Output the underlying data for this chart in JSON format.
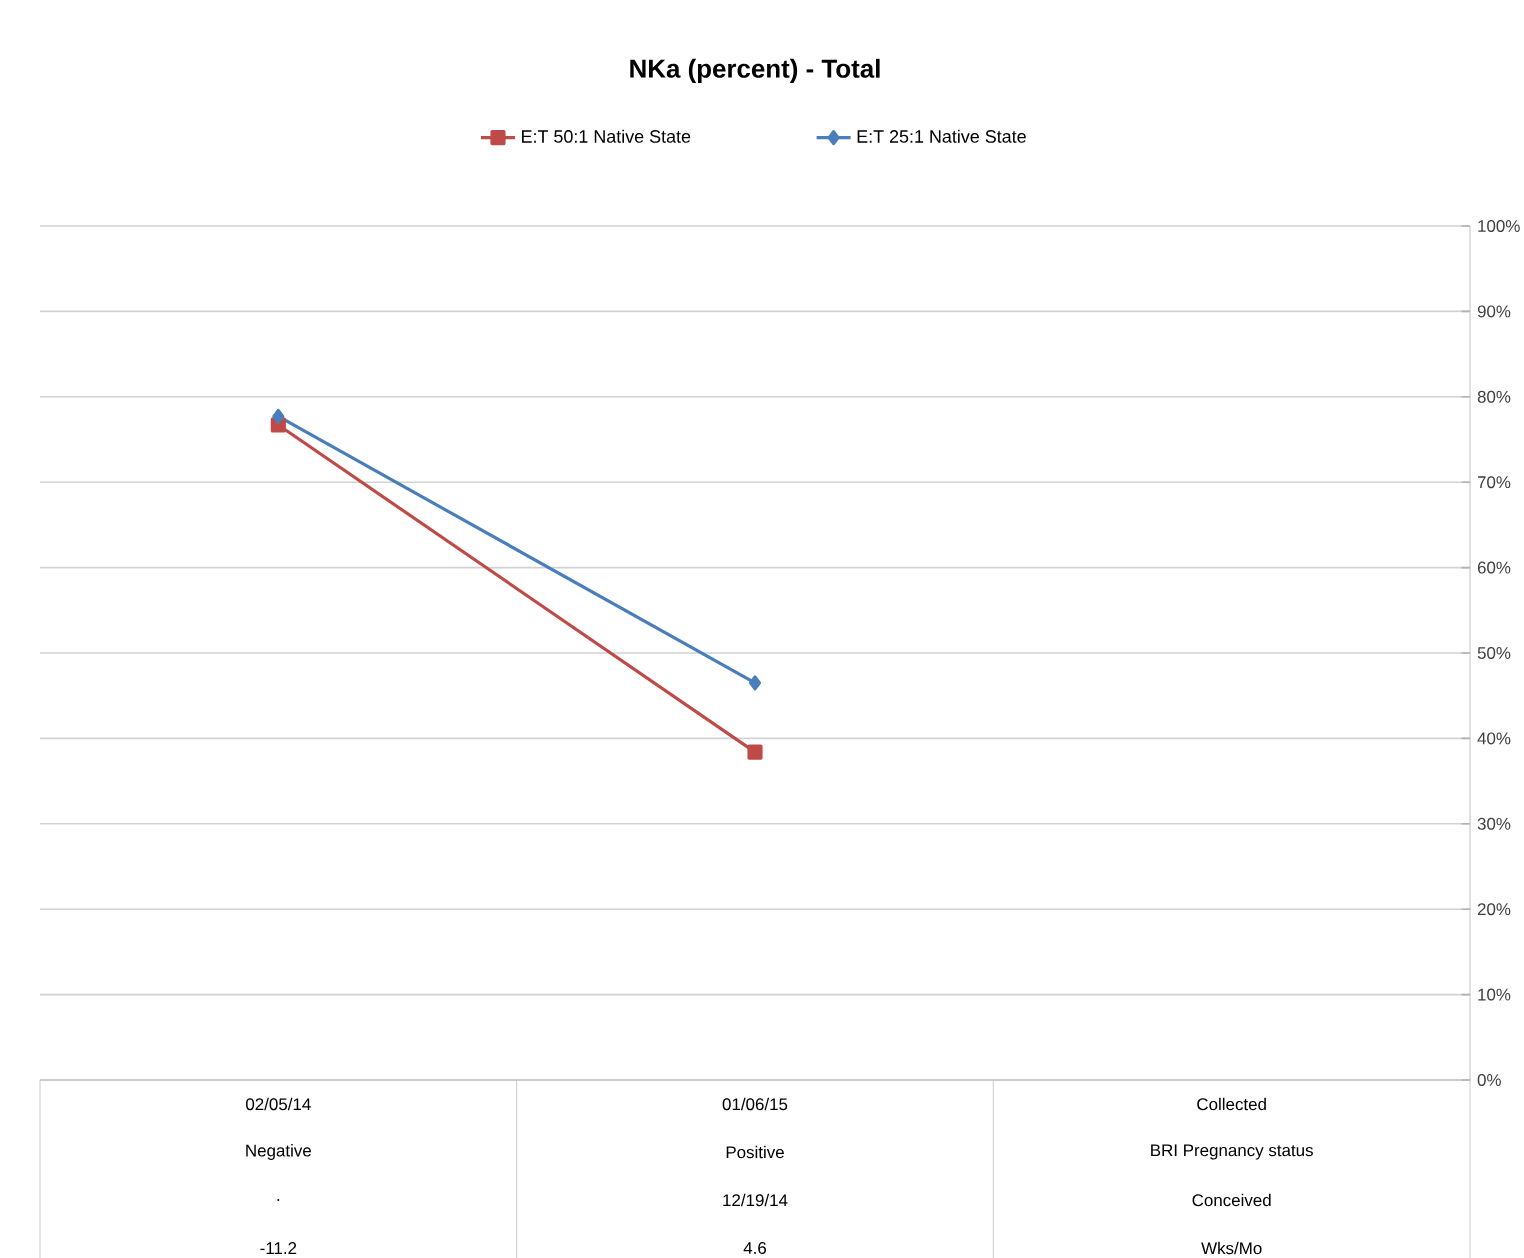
{
  "chart_data": {
    "type": "line",
    "title": "NKa (percent) - Total",
    "categories": [
      "02/05/14",
      "01/06/15",
      "Collected"
    ],
    "series": [
      {
        "name": "E:T 50:1 Native State",
        "color": "#be4b48",
        "marker": "square",
        "values": [
          76.7,
          38.4,
          null
        ]
      },
      {
        "name": "E:T 25:1 Native State",
        "color": "#4a7ebb",
        "marker": "diamond",
        "values": [
          77.7,
          46.5,
          null
        ]
      }
    ],
    "ylim": [
      0,
      100
    ],
    "yticks": [
      {
        "value": 0,
        "label": "0%"
      },
      {
        "value": 10,
        "label": "10%"
      },
      {
        "value": 20,
        "label": "20%"
      },
      {
        "value": 30,
        "label": "30%"
      },
      {
        "value": 40,
        "label": "40%"
      },
      {
        "value": 50,
        "label": "50%"
      },
      {
        "value": 60,
        "label": "60%"
      },
      {
        "value": 70,
        "label": "70%"
      },
      {
        "value": 80,
        "label": "80%"
      },
      {
        "value": 90,
        "label": "90%"
      },
      {
        "value": 100,
        "label": "100%"
      }
    ],
    "annotations": [
      "Negative",
      "Positive",
      "BRI Pregnancy status",
      ".",
      "12/19/14",
      "Conceived",
      "-11.2",
      "4.6",
      "Wks/Mo"
    ],
    "grid": "y",
    "legend": "top"
  }
}
